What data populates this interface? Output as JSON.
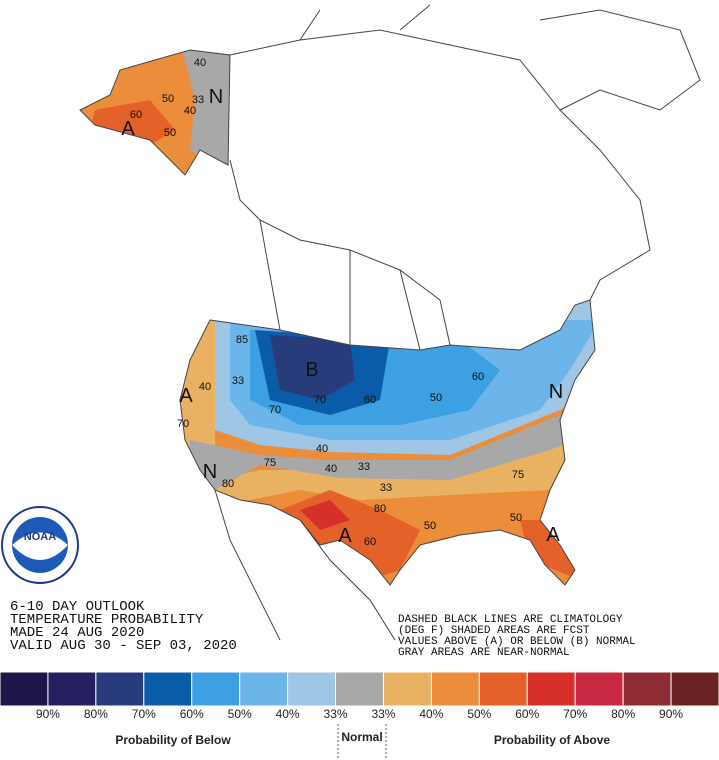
{
  "outlook": {
    "lines": [
      "6-10 DAY OUTLOOK",
      "TEMPERATURE PROBABILITY",
      "MADE  24 AUG 2020",
      "VALID  AUG 30 - SEP 03, 2020"
    ]
  },
  "notes": [
    "DASHED BLACK LINES ARE CLIMATOLOGY",
    "(DEG F) SHADED AREAS ARE FCST",
    "VALUES ABOVE (A) OR BELOW (B) NORMAL",
    "GRAY AREAS ARE NEAR-NORMAL"
  ],
  "logo": "NOAA",
  "map_labels": [
    "40",
    "50",
    "40",
    "33",
    "N",
    "A",
    "60",
    "50",
    "85",
    "33",
    "40",
    "A",
    "70",
    "B",
    "70",
    "70",
    "60",
    "50",
    "60",
    "N",
    "40",
    "40",
    "33",
    "33",
    "N",
    "80",
    "75",
    "80",
    "A",
    "60",
    "50",
    "50",
    "75",
    "A"
  ],
  "legend": {
    "colors": [
      "#1c1748",
      "#262060",
      "#283c7c",
      "#0b5ca8",
      "#3ca0e2",
      "#6cb5ea",
      "#a0c6e6",
      "#a8a8a8",
      "#e9b263",
      "#eb8d3b",
      "#e4622a",
      "#d5302a",
      "#c62a42",
      "#8e2b33",
      "#6a2121"
    ],
    "labels": [
      "90%",
      "80%",
      "70%",
      "60%",
      "50%",
      "40%",
      "33%",
      "33%",
      "40%",
      "50%",
      "60%",
      "70%",
      "80%",
      "90%"
    ],
    "below_title": "Probability of Below",
    "normal_title": "Normal",
    "above_title": "Probability of Above"
  }
}
